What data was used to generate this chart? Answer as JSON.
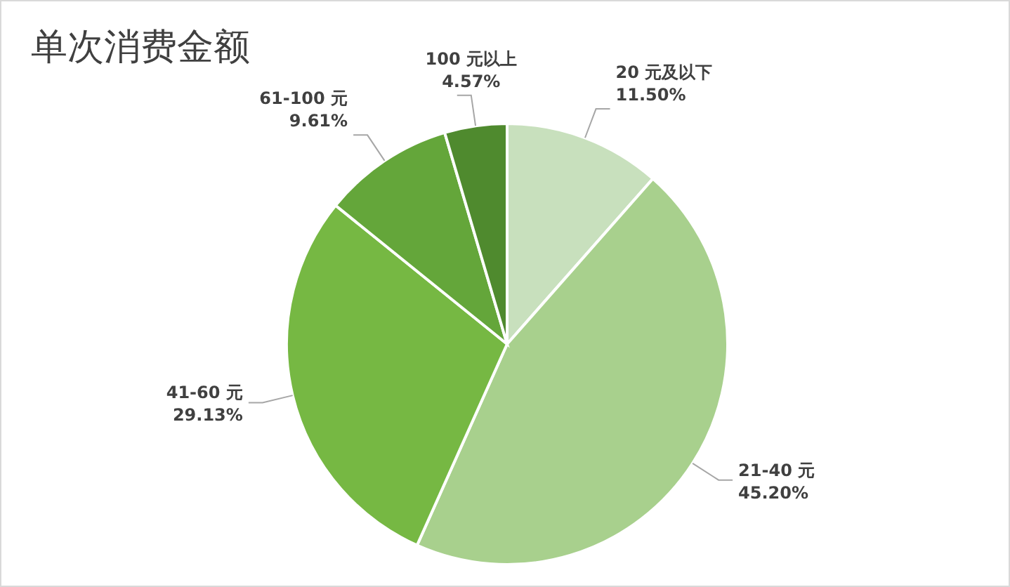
{
  "chart_data": {
    "type": "pie",
    "title": "单次消费金额",
    "categories": [
      "20 元及以下",
      "21-40 元",
      "41-60 元",
      "61-100 元",
      "100 元以上"
    ],
    "values": [
      11.5,
      45.2,
      29.13,
      9.61,
      4.57
    ],
    "value_labels": [
      "11.50%",
      "45.20%",
      "29.13%",
      "9.61%",
      "4.57%"
    ],
    "colors": [
      "#c8e0bd",
      "#a8d08d",
      "#76b843",
      "#64a63a",
      "#4f8a2e"
    ]
  }
}
